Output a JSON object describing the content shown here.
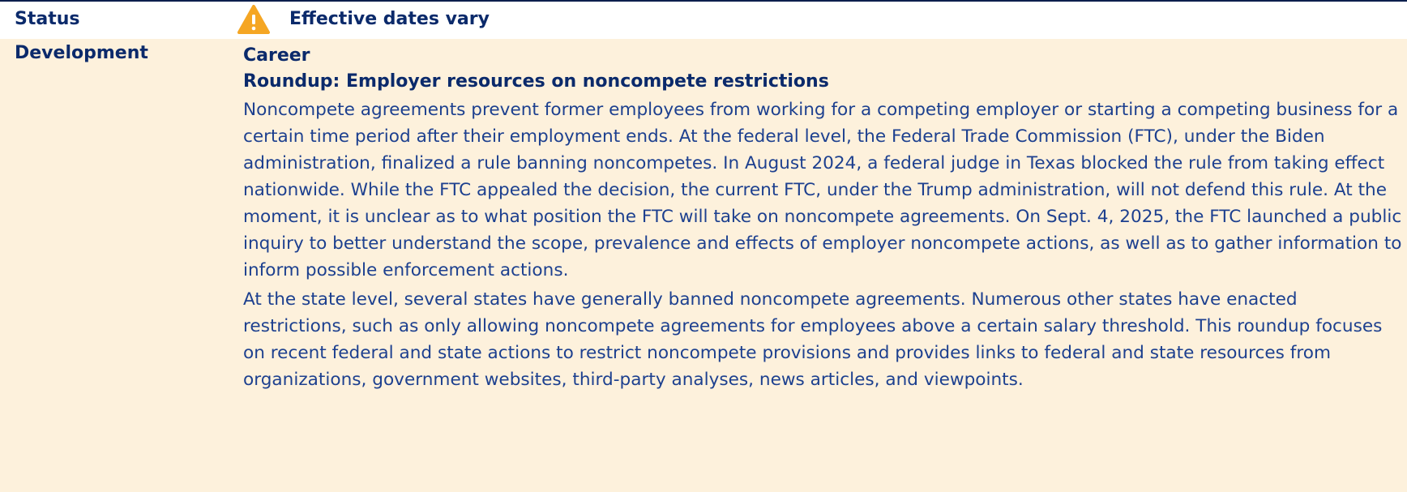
{
  "status": {
    "label": "Status",
    "value": "Effective dates vary"
  },
  "development": {
    "label": "Development",
    "category": "Career",
    "title": "Roundup: Employer resources on noncompete restrictions",
    "paragraphs": [
      "Noncompete agreements prevent former employees from working for a competing employer or starting a competing business for a certain time period after their employment ends. At the federal level, the Federal Trade Commission (FTC), under the Biden administration, finalized a rule banning noncompetes. In August 2024, a federal judge in Texas blocked the rule from taking effect nationwide. While the FTC appealed the decision, the current FTC, under the Trump administration, will not defend this rule. At the moment, it is unclear as to what position the FTC will take on noncompete agreements. On Sept. 4, 2025, the FTC launched a public inquiry to better understand the scope, prevalence and effects of employer noncompete actions, as well as to gather information to inform possible enforcement actions.",
      "At the state level, several states have generally banned noncompete agreements. Numerous other states have enacted restrictions, such as only allowing noncompete agreements for employees above a certain salary threshold. This roundup focuses on recent federal and state actions to restrict noncompete provisions and provides links to federal and state resources from organizations, government websites, third-party analyses, news articles, and viewpoints."
    ]
  }
}
